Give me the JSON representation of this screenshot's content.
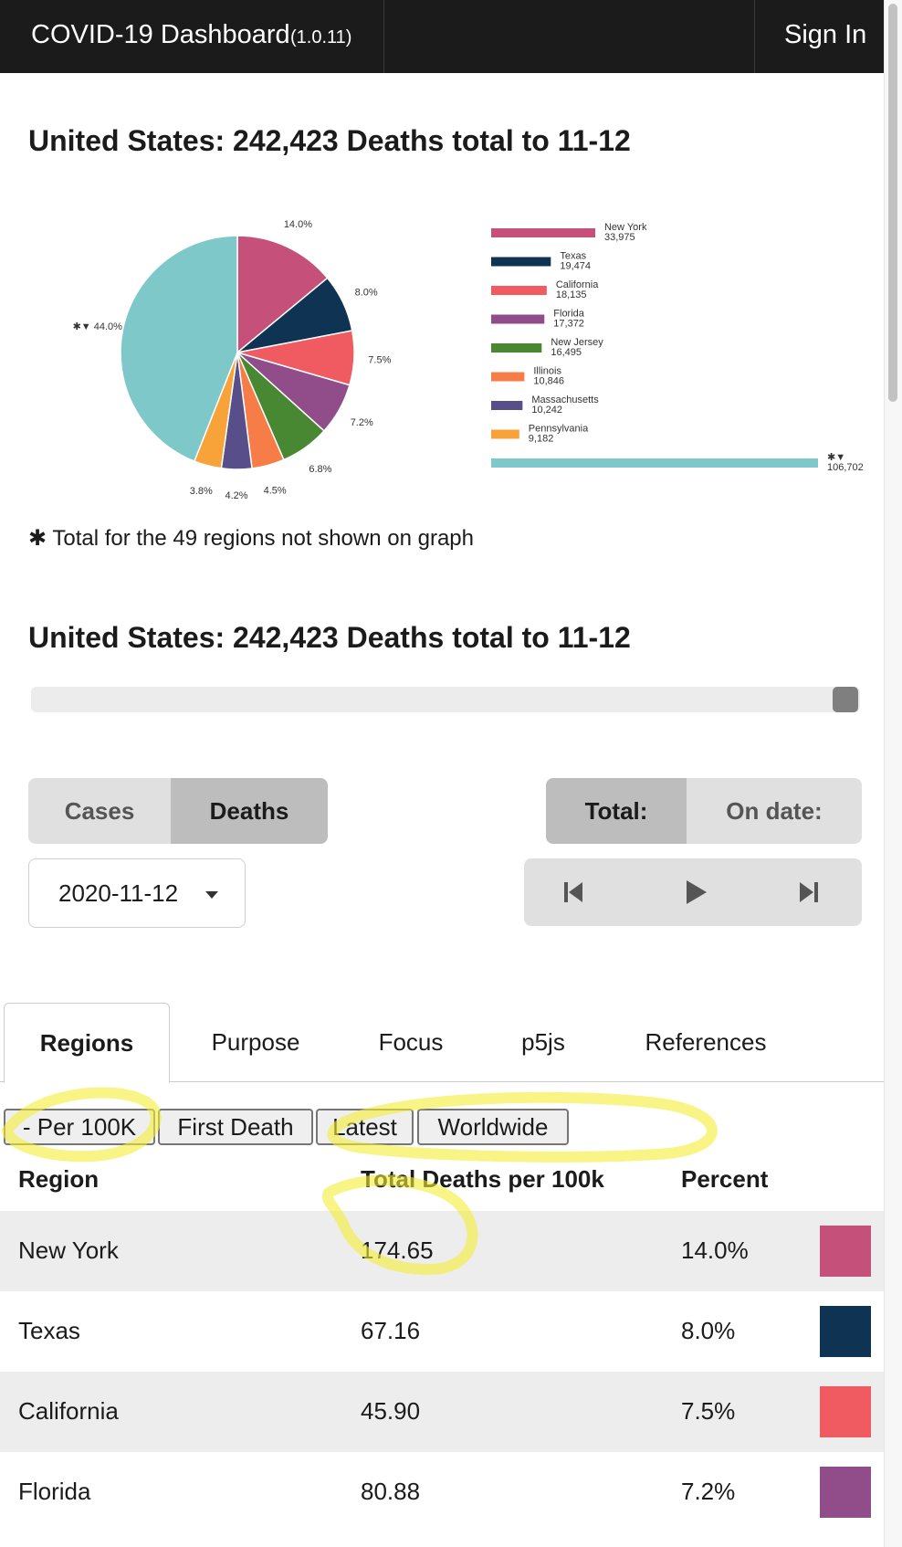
{
  "header": {
    "title": "COVID-19 Dashboard",
    "version": "(1.0.11)",
    "signin": "Sign In"
  },
  "heading1": "United States: 242,423 Deaths total to 11-12",
  "heading2": "United States: 242,423 Deaths total to 11-12",
  "footnote": "✱ Total for the 49 regions not shown on graph",
  "chart_data": [
    {
      "type": "pie",
      "categories": [
        "New York",
        "Texas",
        "California",
        "Florida",
        "New Jersey",
        "Illinois",
        "Massachusetts",
        "Pennsylvania",
        "✱▼"
      ],
      "values": [
        14.0,
        8.0,
        7.5,
        7.2,
        6.8,
        4.5,
        4.2,
        3.8,
        44.0
      ],
      "labels": [
        "14.0%",
        "8.0%",
        "7.5%",
        "7.2%",
        "6.8%",
        "4.5%",
        "4.2%",
        "3.8%",
        "✱▼ 44.0%"
      ],
      "colors": [
        "#c5517a",
        "#0f3453",
        "#f05b61",
        "#914c8a",
        "#488832",
        "#f67d48",
        "#584e8a",
        "#f8a33a",
        "#7ec8c9"
      ]
    },
    {
      "type": "bar",
      "orientation": "horizontal",
      "categories": [
        "New York",
        "Texas",
        "California",
        "Florida",
        "New Jersey",
        "Illinois",
        "Massachusetts",
        "Pennsylvania",
        "✱▼"
      ],
      "values": [
        33975,
        19474,
        18135,
        17372,
        16495,
        10846,
        10242,
        9182,
        106702
      ],
      "value_labels": [
        "33,975",
        "19,474",
        "18,135",
        "17,372",
        "16,495",
        "10,846",
        "10,242",
        "9,182",
        "106,702"
      ],
      "colors": [
        "#c5517a",
        "#0f3453",
        "#f05b61",
        "#914c8a",
        "#488832",
        "#f67d48",
        "#584e8a",
        "#f8a33a",
        "#7ec8c9"
      ]
    }
  ],
  "metric_toggle": {
    "options": [
      "Cases",
      "Deaths"
    ],
    "selected": "Deaths"
  },
  "scope_toggle": {
    "options": [
      "Total:",
      "On date:"
    ],
    "selected": "Total:"
  },
  "date_select": {
    "value": "2020-11-12"
  },
  "tabs": [
    "Regions",
    "Purpose",
    "Focus",
    "p5js",
    "References"
  ],
  "active_tab": "Regions",
  "filters": [
    "- Per 100K",
    "First Death",
    "Latest",
    "Worldwide"
  ],
  "table": {
    "headers": [
      "Region",
      "Total Deaths per 100k",
      "Percent"
    ],
    "rows": [
      {
        "region": "New York",
        "value": "174.65",
        "percent": "14.0%",
        "color": "#c5517a"
      },
      {
        "region": "Texas",
        "value": "67.16",
        "percent": "8.0%",
        "color": "#0f3453"
      },
      {
        "region": "California",
        "value": "45.90",
        "percent": "7.5%",
        "color": "#f05b61"
      },
      {
        "region": "Florida",
        "value": "80.88",
        "percent": "7.2%",
        "color": "#914c8a"
      }
    ]
  }
}
